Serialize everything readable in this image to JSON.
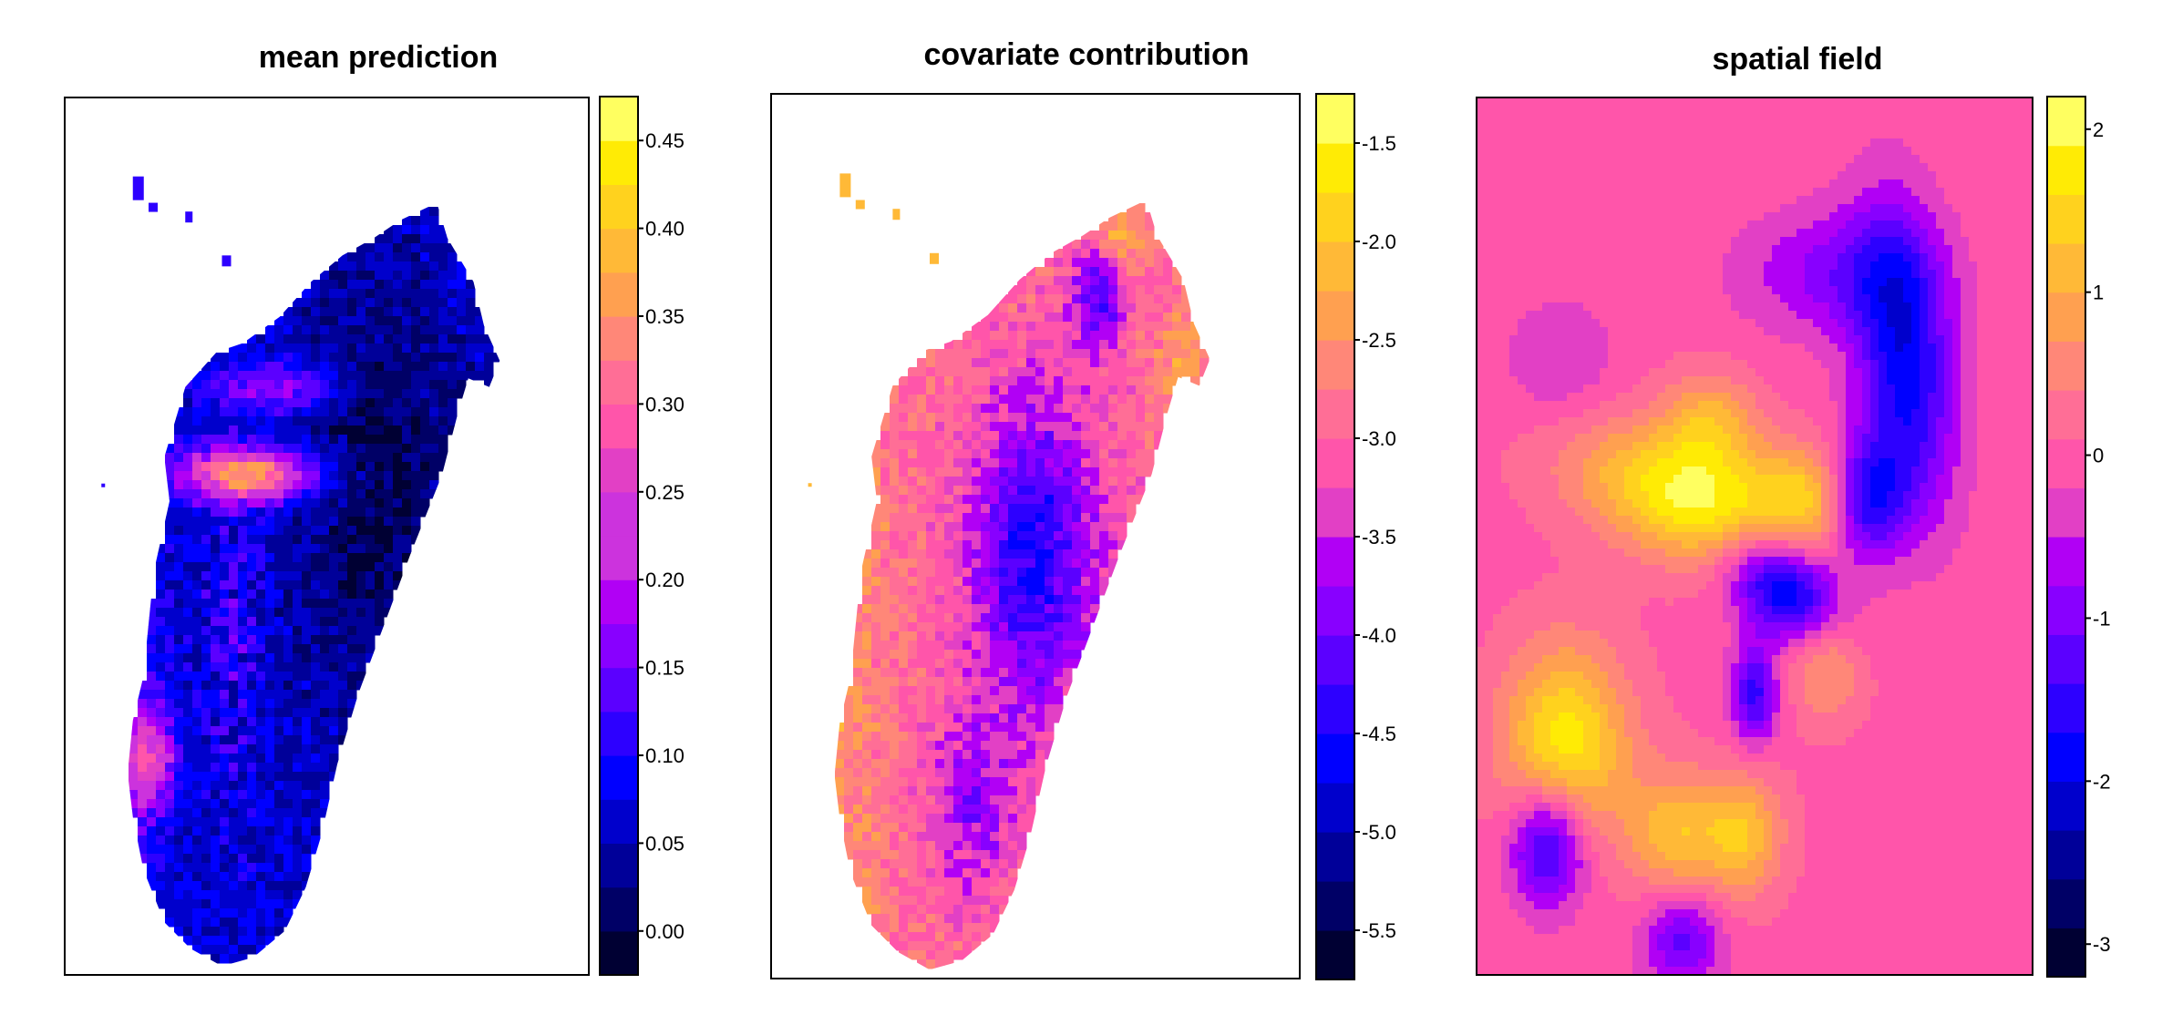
{
  "chart_data": [
    {
      "type": "heatmap",
      "title": "mean prediction",
      "xlabel": "",
      "ylabel": "",
      "description": "Raster map of Madagascar (mean predicted prevalence); high values along central-west belt and south-west coast, lowest in the east",
      "colorbar": {
        "range": [
          -0.025,
          0.475
        ],
        "breaks": [
          -0.025,
          0.0,
          0.025,
          0.05,
          0.075,
          0.1,
          0.125,
          0.15,
          0.175,
          0.2,
          0.225,
          0.25,
          0.275,
          0.3,
          0.325,
          0.35,
          0.375,
          0.4,
          0.425,
          0.45,
          0.475
        ],
        "ticks": [
          "0.00",
          "0.05",
          "0.10",
          "0.15",
          "0.20",
          "0.25",
          "0.30",
          "0.35",
          "0.40",
          "0.45"
        ],
        "tick_values": [
          0.0,
          0.05,
          0.1,
          0.15,
          0.2,
          0.25,
          0.3,
          0.35,
          0.4,
          0.45
        ]
      }
    },
    {
      "type": "heatmap",
      "title": "covariate contribution",
      "xlabel": "",
      "ylabel": "",
      "description": "Raster map of Madagascar (covariate contribution); low values in central highlands and north-east, high values on western and coastal fringe",
      "colorbar": {
        "range": [
          -5.75,
          -1.25
        ],
        "breaks": [
          -5.75,
          -5.5,
          -5.25,
          -5.0,
          -4.75,
          -4.5,
          -4.25,
          -4.0,
          -3.75,
          -3.5,
          -3.25,
          -3.0,
          -2.75,
          -2.5,
          -2.25,
          -2.0,
          -1.75,
          -1.5,
          -1.25
        ],
        "ticks": [
          "-5.5",
          "-5.0",
          "-4.5",
          "-4.0",
          "-3.5",
          "-3.0",
          "-2.5",
          "-2.0",
          "-1.5"
        ],
        "tick_values": [
          -5.5,
          -5.0,
          -4.5,
          -4.0,
          -3.5,
          -3.0,
          -2.5,
          -2.0,
          -1.5
        ]
      }
    },
    {
      "type": "heatmap",
      "title": "spatial field",
      "xlabel": "",
      "ylabel": "",
      "description": "Smooth spatial random field over the rectangular extent; background near 0, positive blobs (up to ~2) on the west side, negative blobs (down to ~-2) along a central NE-SW band",
      "colorbar": {
        "range": [
          -3.2,
          2.2
        ],
        "breaks": [
          -3.2,
          -2.9,
          -2.6,
          -2.3,
          -2.0,
          -1.7,
          -1.4,
          -1.1,
          -0.8,
          -0.5,
          -0.2,
          0.1,
          0.4,
          0.7,
          1.0,
          1.3,
          1.6,
          1.9,
          2.2
        ],
        "ticks": [
          "-3",
          "-2",
          "-1",
          "0",
          "1",
          "2"
        ],
        "tick_values": [
          -3,
          -2,
          -1,
          0,
          1,
          2
        ]
      },
      "field_blobs": [
        {
          "x": 0.4,
          "y": 0.54,
          "value": 2.0,
          "spread": [
            0.15,
            0.05
          ],
          "angle": -10
        },
        {
          "x": 0.16,
          "y": 0.26,
          "value": 1.8,
          "spread": [
            0.08,
            0.08
          ],
          "angle": 0
        },
        {
          "x": 0.36,
          "y": 0.16,
          "value": 1.2,
          "spread": [
            0.06,
            0.05
          ],
          "angle": 0
        },
        {
          "x": 0.48,
          "y": 0.16,
          "value": 1.2,
          "spread": [
            0.05,
            0.05
          ],
          "angle": 0
        },
        {
          "x": 0.63,
          "y": 0.37,
          "value": 1.1,
          "spread": [
            0.05,
            0.05
          ],
          "angle": 0
        },
        {
          "x": 0.42,
          "y": 0.63,
          "value": 1.0,
          "spread": [
            0.06,
            0.04
          ],
          "angle": 0
        },
        {
          "x": 0.6,
          "y": 0.55,
          "value": 1.0,
          "spread": [
            0.06,
            0.04
          ],
          "angle": 0
        },
        {
          "x": 0.15,
          "y": 0.7,
          "value": -0.5,
          "spread": [
            0.07,
            0.05
          ],
          "angle": 0
        },
        {
          "x": 0.56,
          "y": 0.44,
          "value": -2.4,
          "spread": [
            0.08,
            0.04
          ],
          "angle": -20
        },
        {
          "x": 0.7,
          "y": 0.54,
          "value": -1.8,
          "spread": [
            0.05,
            0.05
          ],
          "angle": 0
        },
        {
          "x": 0.77,
          "y": 0.7,
          "value": -1.9,
          "spread": [
            0.06,
            0.12
          ],
          "angle": 10
        },
        {
          "x": 0.13,
          "y": 0.15,
          "value": -1.9,
          "spread": [
            0.05,
            0.05
          ],
          "angle": 0
        },
        {
          "x": 0.5,
          "y": 0.32,
          "value": -1.5,
          "spread": [
            0.03,
            0.04
          ],
          "angle": 0
        },
        {
          "x": 0.37,
          "y": 0.04,
          "value": -1.2,
          "spread": [
            0.05,
            0.04
          ],
          "angle": 0
        },
        {
          "x": 0.65,
          "y": 0.8,
          "value": -0.9,
          "spread": [
            0.12,
            0.05
          ],
          "angle": 0
        }
      ]
    }
  ],
  "colors": {
    "palette": [
      "#000033",
      "#000066",
      "#000099",
      "#0000CC",
      "#0000FF",
      "#2D00FF",
      "#5B00FF",
      "#8800FF",
      "#B100F5",
      "#CC33DD",
      "#E240C5",
      "#FF55AA",
      "#FF6E96",
      "#FF8778",
      "#FFA050",
      "#FFB937",
      "#FFD21E",
      "#FFEB05",
      "#FFFF60"
    ]
  }
}
